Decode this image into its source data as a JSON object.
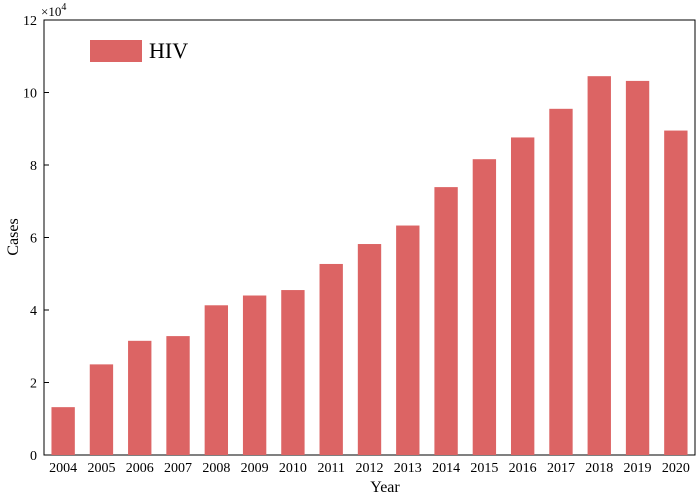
{
  "chart_data": {
    "type": "bar",
    "categories": [
      "2004",
      "2005",
      "2006",
      "2007",
      "2008",
      "2009",
      "2010",
      "2011",
      "2012",
      "2013",
      "2014",
      "2015",
      "2016",
      "2017",
      "2018",
      "2019",
      "2020"
    ],
    "series": [
      {
        "name": "HIV",
        "values": [
          13200,
          25000,
          31500,
          32800,
          41300,
          44000,
          45500,
          52700,
          58200,
          63300,
          73900,
          81600,
          87600,
          95500,
          104500,
          103200,
          89500
        ]
      }
    ],
    "xlabel": "Year",
    "ylabel": "Cases",
    "ylim": [
      0,
      120000
    ],
    "yticks": [
      0,
      2,
      4,
      6,
      8,
      10,
      12
    ],
    "y_tick_scale": 10000,
    "y_multiplier": {
      "base": "×10",
      "exponent": "4"
    },
    "grid": false,
    "legend_position": "top-left",
    "bar_color": "#dc6464"
  }
}
